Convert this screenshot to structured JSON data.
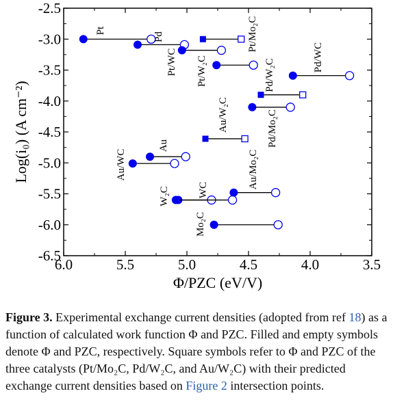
{
  "chart_data": {
    "type": "scatter",
    "xlabel": "Φ/PZC (eV/V)",
    "ylabel": "Log(i₀) (A cm⁻²)",
    "xlim": [
      6.0,
      3.5
    ],
    "ylim": [
      -6.5,
      -2.5
    ],
    "x_ticks": [
      "6.0",
      "5.5",
      "5.0",
      "4.5",
      "4.0",
      "3.5"
    ],
    "y_ticks": [
      "-2.5",
      "-3.0",
      "-3.5",
      "-4.0",
      "-4.5",
      "-5.0",
      "-5.5",
      "-6.0",
      "-6.5"
    ],
    "x_reversed": true,
    "grid": false,
    "colors": {
      "filled": "#0000ee",
      "line": "#000000"
    },
    "series": [
      {
        "label": "Pt",
        "shape": "circle",
        "phi": 5.84,
        "pzc": 5.29,
        "log_i0": -3.0
      },
      {
        "label": "Pd",
        "shape": "circle",
        "phi": 5.4,
        "pzc": 5.02,
        "log_i0": -3.09
      },
      {
        "label": "Pt/WC",
        "shape": "circle",
        "phi": 5.04,
        "pzc": 4.72,
        "log_i0": -3.18
      },
      {
        "label": "Pt/W₂C",
        "shape": "circle",
        "phi": 4.76,
        "pzc": 4.46,
        "log_i0": -3.42
      },
      {
        "label": "Pt/Mo₂C",
        "shape": "square",
        "phi": 4.87,
        "pzc": 4.56,
        "log_i0": -3.0
      },
      {
        "label": "Pd/WC",
        "shape": "circle",
        "phi": 4.14,
        "pzc": 3.68,
        "log_i0": -3.59
      },
      {
        "label": "Pd/W₂C",
        "shape": "square",
        "phi": 4.4,
        "pzc": 4.06,
        "log_i0": -3.9
      },
      {
        "label": "Pd/Mo₂C",
        "shape": "circle",
        "phi": 4.47,
        "pzc": 4.16,
        "log_i0": -4.1
      },
      {
        "label": "Au/W₂C",
        "shape": "square",
        "phi": 4.85,
        "pzc": 4.53,
        "log_i0": -4.61
      },
      {
        "label": "Au",
        "shape": "circle",
        "phi": 5.3,
        "pzc": 5.01,
        "log_i0": -4.9
      },
      {
        "label": "Au/WC",
        "shape": "circle",
        "phi": 5.44,
        "pzc": 5.1,
        "log_i0": -5.01
      },
      {
        "label": "Au/Mo₂C",
        "shape": "circle",
        "phi": 4.62,
        "pzc": 4.28,
        "log_i0": -5.48
      },
      {
        "label": "W₂C",
        "shape": "circle",
        "phi": 5.07,
        "pzc": 4.8,
        "log_i0": -5.6
      },
      {
        "label": "WC",
        "shape": "circle",
        "phi": 5.09,
        "pzc": 4.63,
        "log_i0": -5.6
      },
      {
        "label": "Mo₂C",
        "shape": "circle",
        "phi": 4.78,
        "pzc": 4.26,
        "log_i0": -6.0
      }
    ]
  },
  "caption": {
    "figure_label": "Figure 3.",
    "text_1": " Experimental exchange current densities (adopted from ref ",
    "ref_1": "18",
    "text_2": ") as a function of calculated work function Φ and PZC. Filled and empty symbols denote Φ and PZC, respectively. Square symbols refer to Φ and PZC of the three catalysts (Pt/Mo₂C, Pd/W₂C, and Au/W₂C) with their predicted exchange current densities based on ",
    "ref_2": "Figure 2",
    "text_3": " intersection points."
  }
}
